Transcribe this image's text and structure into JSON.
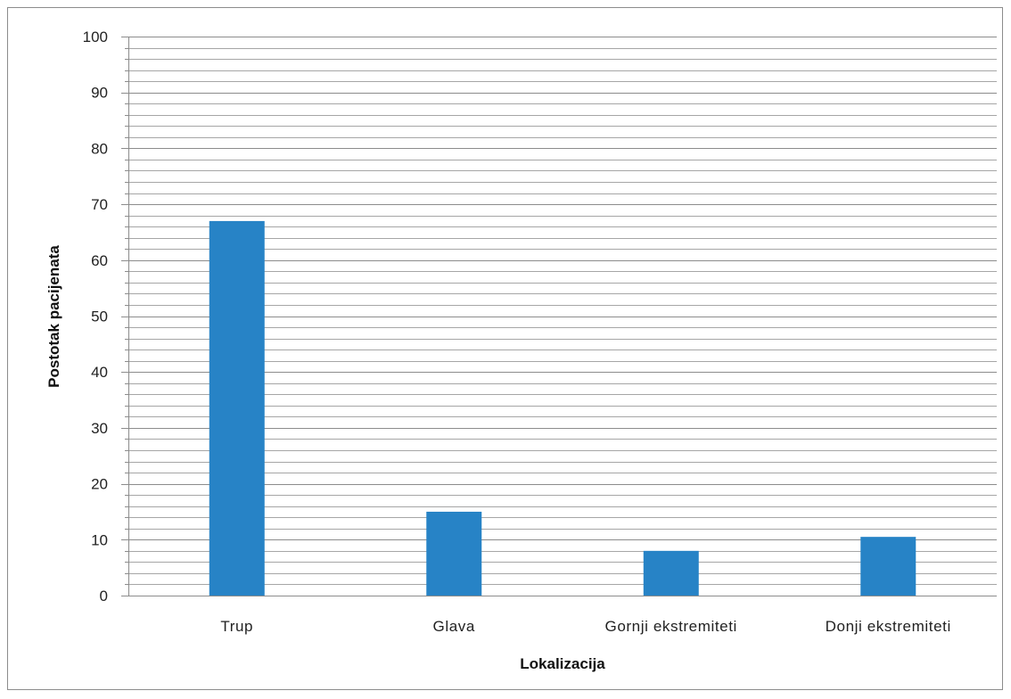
{
  "chart_data": {
    "type": "bar",
    "categories": [
      "Trup",
      "Glava",
      "Gornji ekstremiteti",
      "Donji ekstremiteti"
    ],
    "values": [
      67,
      15,
      8,
      10.5
    ],
    "xlabel": "Lokalizacija",
    "ylabel": "Postotak pacijenata",
    "ylim": [
      0,
      100
    ],
    "yticks": [
      0,
      10,
      20,
      30,
      40,
      50,
      60,
      70,
      80,
      90,
      100
    ],
    "grid": true,
    "legend": "none",
    "bar_color": "#2783C6",
    "gridline_color": "#a6a6a6",
    "axis_color": "#8c8c8c"
  }
}
